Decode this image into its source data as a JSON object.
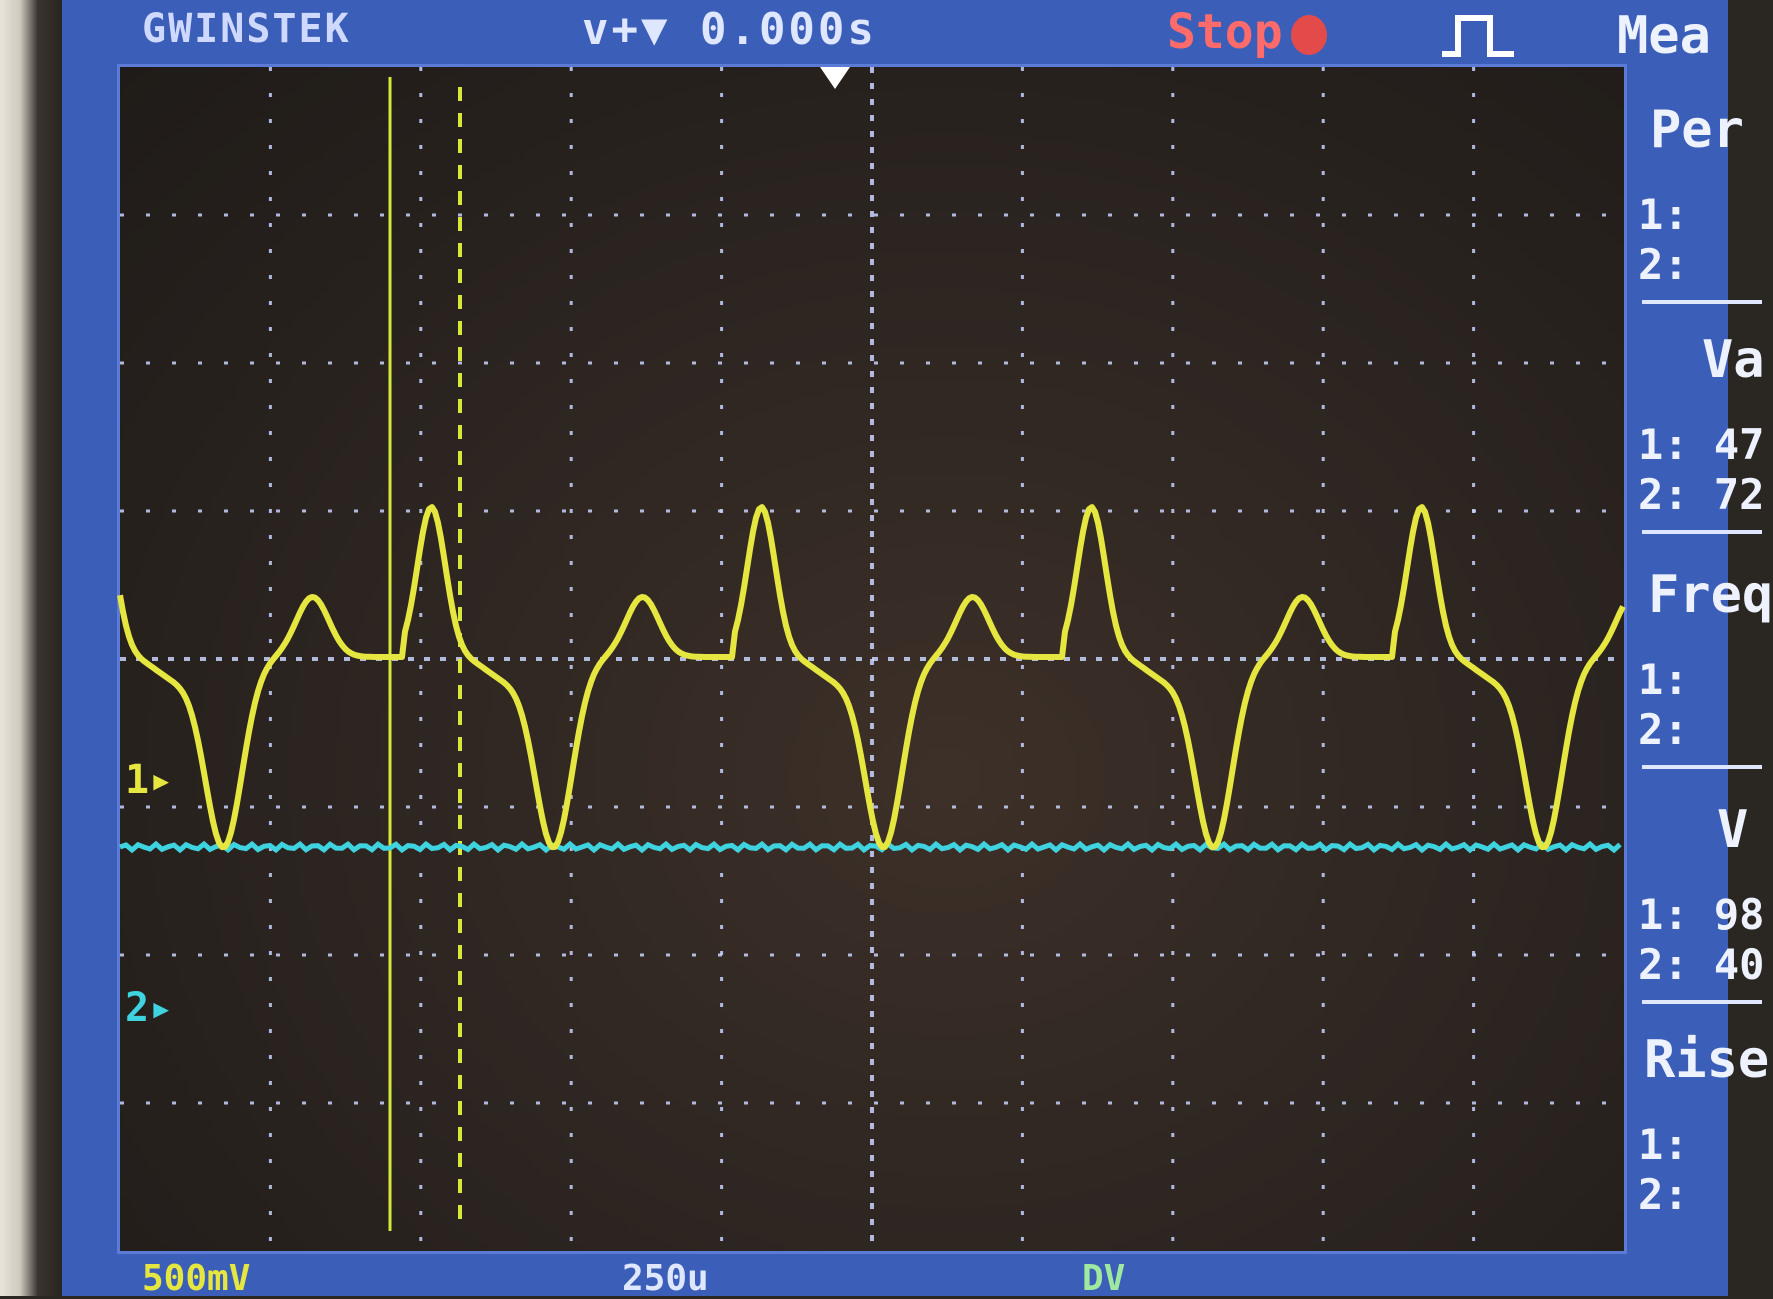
{
  "header": {
    "brand": "GWINSTEK",
    "trigger_readout": "v+▼ 0.000s",
    "run_state": "Stop",
    "measure_title": "Mea"
  },
  "channels": {
    "ch1_marker": "1▸",
    "ch2_marker": "2▸"
  },
  "measurements": {
    "period_title": "Per",
    "period_ch1": "1:",
    "period_ch2": "2:",
    "vamp_title": "Va",
    "vamp_ch1": "1: 47",
    "vamp_ch2": "2: 72",
    "freq_title": "Freq",
    "freq_ch1": "1:",
    "freq_ch2": "2:",
    "vpp_title": "V",
    "vpp_ch1": "1: 98",
    "vpp_ch2": "2: 40",
    "rise_title": "Rise",
    "rise_ch1": "1:",
    "rise_ch2": "2:"
  },
  "footer": {
    "ch1_scale": "500mV",
    "timebase": "250u",
    "ch2_scale": "DV"
  },
  "colors": {
    "ch1": "#e6e640",
    "ch2": "#3fd3e0",
    "screen": "#3b5fb8"
  }
}
